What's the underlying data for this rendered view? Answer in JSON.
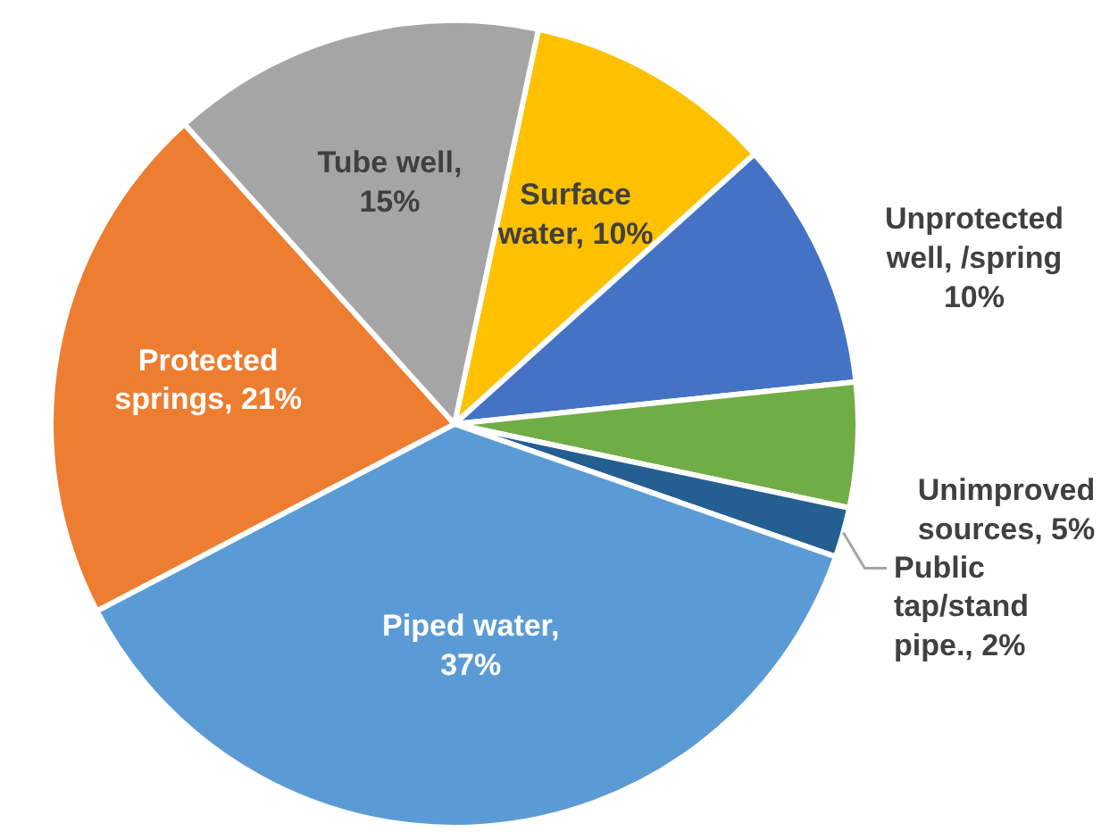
{
  "chart_data": {
    "type": "pie",
    "categories": [
      "Surface water, 10%",
      "Unprotected well, /spring 10%",
      "Unimproved sources, 5%",
      "Public tap/stand pipe., 2%",
      "Piped water, 37%",
      "Protected springs, 21%",
      "Tube well, 15%"
    ],
    "values": [
      10,
      10,
      5,
      2,
      37,
      21,
      15
    ],
    "colors": [
      "#ffc000",
      "#4472c4",
      "#70ad47",
      "#255e91",
      "#5b9bd5",
      "#ed7d31",
      "#a5a5a5"
    ],
    "legend": false
  }
}
